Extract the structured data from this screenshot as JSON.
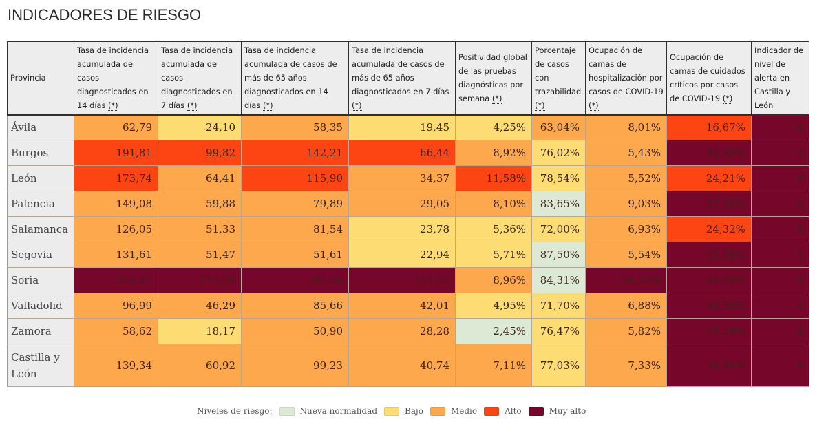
{
  "page": {
    "title": "INDICADORES DE RIESGO"
  },
  "chart_data": {
    "type": "table",
    "title": "INDICADORES DE RIESGO",
    "columns": [
      {
        "label": "Provincia",
        "note": ""
      },
      {
        "label": "Tasa de incidencia acumulada de casos diagnosticados en 14 días ",
        "note": "(*)"
      },
      {
        "label": "Tasa de incidencia acumulada de casos diagnosticados en 7 días ",
        "note": "(*)"
      },
      {
        "label": "Tasa de incidencia acumulada de casos de más de 65 años diagnosticados en 14 días ",
        "note": "(*)"
      },
      {
        "label": "Tasa de incidencia acumulada de casos de más de 65 años diagnosticados en 7 días ",
        "note": "(*)"
      },
      {
        "label": "Positividad global de las pruebas diagnósticas por semana ",
        "note": "(*)"
      },
      {
        "label": "Porcentaje de casos con trazabilidad ",
        "note": "(*)"
      },
      {
        "label": "Ocupación de camas de hospitalización por casos de COVID-19 ",
        "note": "(*)"
      },
      {
        "label": "Ocupación de camas de cuidados críticos por casos de COVID-19 ",
        "note": "(*)"
      },
      {
        "label": "Indicador de nivel de alerta en Castilla y León",
        "note": ""
      }
    ],
    "rows": [
      {
        "provincia": "Ávila",
        "values": [
          "62,79",
          "24,10",
          "58,35",
          "19,45",
          "4,25%",
          "63,04%",
          "8,01%",
          "16,67%",
          "4"
        ],
        "levels": [
          "medio",
          "bajo",
          "medio",
          "bajo",
          "bajo",
          "medio",
          "medio",
          "alto",
          "muyalto"
        ]
      },
      {
        "provincia": "Burgos",
        "values": [
          "191,81",
          "99,82",
          "142,21",
          "66,44",
          "8,92%",
          "76,02%",
          "5,43%",
          "34,83%",
          "4"
        ],
        "levels": [
          "alto",
          "alto",
          "alto",
          "alto",
          "medio",
          "bajo",
          "medio",
          "muyalto",
          "muyalto"
        ]
      },
      {
        "provincia": "León",
        "values": [
          "173,74",
          "64,41",
          "115,90",
          "34,37",
          "11,58%",
          "78,54%",
          "5,52%",
          "24,21%",
          "4"
        ],
        "levels": [
          "alto",
          "medio",
          "alto",
          "medio",
          "alto",
          "bajo",
          "medio",
          "alto",
          "muyalto"
        ]
      },
      {
        "provincia": "Palencia",
        "values": [
          "149,08",
          "59,88",
          "79,89",
          "29,05",
          "8,10%",
          "83,65%",
          "9,03%",
          "37,50%",
          "4"
        ],
        "levels": [
          "medio",
          "medio",
          "medio",
          "medio",
          "medio",
          "nn",
          "medio",
          "muyalto",
          "muyalto"
        ]
      },
      {
        "provincia": "Salamanca",
        "values": [
          "126,05",
          "51,33",
          "81,54",
          "23,78",
          "5,36%",
          "72,00%",
          "6,93%",
          "24,32%",
          "4"
        ],
        "levels": [
          "medio",
          "medio",
          "medio",
          "bajo",
          "bajo",
          "bajo",
          "medio",
          "alto",
          "muyalto"
        ]
      },
      {
        "provincia": "Segovia",
        "values": [
          "131,61",
          "51,47",
          "51,61",
          "22,94",
          "5,71%",
          "87,50%",
          "5,54%",
          "45,16%",
          "4"
        ],
        "levels": [
          "medio",
          "medio",
          "medio",
          "bajo",
          "bajo",
          "nn",
          "medio",
          "muyalto",
          "muyalto"
        ]
      },
      {
        "provincia": "Soria",
        "values": [
          "335,27",
          "173,26",
          "281,50",
          "153,95",
          "8,96%",
          "84,31%",
          "20,33%",
          "64,00%",
          "4"
        ],
        "levels": [
          "muyalto",
          "muyalto",
          "muyalto",
          "muyalto",
          "medio",
          "nn",
          "muyalto",
          "muyalto",
          "muyalto"
        ]
      },
      {
        "provincia": "Valladolid",
        "values": [
          "96,99",
          "46,29",
          "85,66",
          "42,01",
          "4,95%",
          "71,70%",
          "6,88%",
          "40,56%",
          "4"
        ],
        "levels": [
          "medio",
          "medio",
          "medio",
          "medio",
          "bajo",
          "bajo",
          "medio",
          "muyalto",
          "muyalto"
        ]
      },
      {
        "provincia": "Zamora",
        "values": [
          "58,62",
          "18,17",
          "50,90",
          "28,28",
          "2,45%",
          "76,47%",
          "5,82%",
          "31,58%",
          "4"
        ],
        "levels": [
          "medio",
          "bajo",
          "medio",
          "medio",
          "nn",
          "bajo",
          "medio",
          "muyalto",
          "muyalto"
        ]
      },
      {
        "provincia": "Castilla y León",
        "values": [
          "139,34",
          "60,92",
          "99,23",
          "40,74",
          "7,11%",
          "77,03%",
          "7,33%",
          "34,46%",
          "4"
        ],
        "levels": [
          "medio",
          "medio",
          "medio",
          "medio",
          "medio",
          "bajo",
          "medio",
          "muyalto",
          "muyalto"
        ],
        "total": true
      }
    ],
    "legend": {
      "label": "Niveles de riesgo:",
      "placement": "bottom",
      "items": [
        {
          "key": "nn",
          "label": "Nueva normalidad",
          "color": "#dcead5"
        },
        {
          "key": "bajo",
          "label": "Bajo",
          "color": "#fddc73"
        },
        {
          "key": "medio",
          "label": "Medio",
          "color": "#fda84d"
        },
        {
          "key": "alto",
          "label": "Alto",
          "color": "#fd4514"
        },
        {
          "key": "muyalto",
          "label": "Muy alto",
          "color": "#76062a"
        }
      ]
    }
  }
}
